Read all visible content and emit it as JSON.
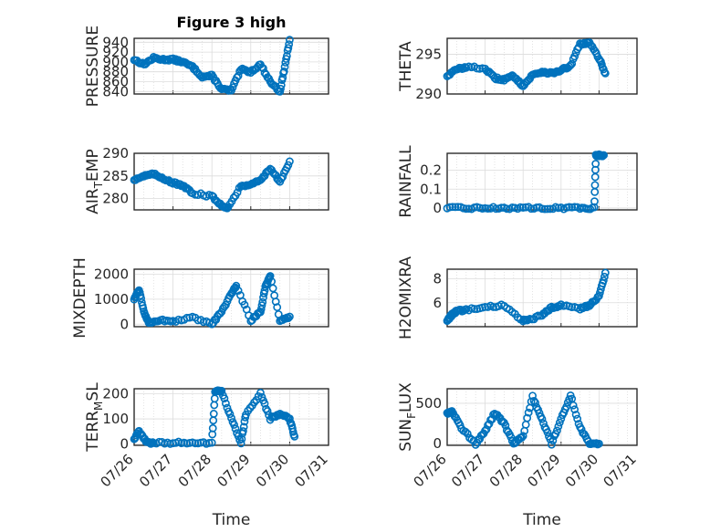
{
  "chart_data": [
    {
      "type": "scatter",
      "title": "Figure 3 high",
      "ylabel": "PRESSURE",
      "ylim": [
        835,
        948
      ],
      "yticks": [
        "840",
        "860",
        "880",
        "900",
        "920",
        "940"
      ],
      "ytick_values": [
        840,
        860,
        880,
        900,
        920,
        940
      ],
      "x": [
        "07/26 00:00",
        "07/26 06:00",
        "07/26 12:00",
        "07/26 18:00",
        "07/27 00:00",
        "07/27 06:00",
        "07/27 12:00",
        "07/27 18:00",
        "07/28 00:00",
        "07/28 06:00",
        "07/28 12:00",
        "07/28 18:00",
        "07/29 00:00",
        "07/29 06:00",
        "07/29 12:00",
        "07/29 18:00",
        "07/29 21:00",
        "07/30 00:00"
      ],
      "y": [
        905,
        895,
        908,
        905,
        905,
        900,
        890,
        870,
        872,
        845,
        842,
        885,
        880,
        895,
        860,
        840,
        890,
        945
      ]
    },
    {
      "type": "scatter",
      "title": "",
      "ylabel": "THETA",
      "ylim": [
        290,
        297
      ],
      "yticks": [
        "290",
        "295"
      ],
      "ytick_values": [
        290,
        295
      ],
      "x": [
        "07/26 00:00",
        "07/26 06:00",
        "07/26 12:00",
        "07/27 00:00",
        "07/27 06:00",
        "07/27 12:00",
        "07/27 18:00",
        "07/28 00:00",
        "07/28 06:00",
        "07/28 12:00",
        "07/28 18:00",
        "07/29 00:00",
        "07/29 06:00",
        "07/29 12:00",
        "07/29 18:00",
        "07/30 00:00",
        "07/30 04:00"
      ],
      "y": [
        292.3,
        293.1,
        293.4,
        293.2,
        292.0,
        291.8,
        292.3,
        291.0,
        292.4,
        292.8,
        292.6,
        293.0,
        293.5,
        296.3,
        296.4,
        294.5,
        292.6
      ]
    },
    {
      "type": "scatter",
      "title": "",
      "ylabel": "AIR_TEMP",
      "ylabel_main": "AIR",
      "ylabel_sub": "T",
      "ylabel_rest": "EMP",
      "ylim": [
        277.5,
        290
      ],
      "yticks": [
        "280",
        "285",
        "290"
      ],
      "ytick_values": [
        280,
        285,
        290
      ],
      "x": [
        "07/26 00:00",
        "07/26 06:00",
        "07/26 12:00",
        "07/26 18:00",
        "07/27 00:00",
        "07/27 06:00",
        "07/27 12:00",
        "07/28 00:00",
        "07/28 06:00",
        "07/28 10:00",
        "07/28 18:00",
        "07/29 00:00",
        "07/29 06:00",
        "07/29 12:00",
        "07/29 18:00",
        "07/30 00:00"
      ],
      "y": [
        284.2,
        285.0,
        285.4,
        284.5,
        283.5,
        282.8,
        281.2,
        280.5,
        278.5,
        278.0,
        282.8,
        283.2,
        284.0,
        286.8,
        283.5,
        288.2
      ]
    },
    {
      "type": "scatter",
      "title": "",
      "ylabel": "RAINFALL",
      "ylim": [
        -0.01,
        0.29
      ],
      "yticks": [
        "0",
        "0.1",
        "0.2"
      ],
      "ytick_values": [
        0,
        0.1,
        0.2
      ],
      "x": [
        "07/26 00:00",
        "07/26 12:00",
        "07/27 00:00",
        "07/27 12:00",
        "07/28 00:00",
        "07/28 12:00",
        "07/29 00:00",
        "07/29 12:00",
        "07/29 21:00",
        "07/29 22:00",
        "07/30 00:00",
        "07/30 03:00"
      ],
      "y": [
        0,
        0,
        0,
        0,
        0,
        0,
        0,
        0,
        0,
        0.28,
        0.28,
        0.28
      ]
    },
    {
      "type": "scatter",
      "title": "",
      "ylabel": "MIXDEPTH",
      "ylim": [
        -100,
        2200
      ],
      "yticks": [
        "0",
        "1000",
        "2000"
      ],
      "ytick_values": [
        0,
        1000,
        2000
      ],
      "x": [
        "07/26 00:00",
        "07/26 03:00",
        "07/26 06:00",
        "07/26 09:00",
        "07/26 15:00",
        "07/27 00:00",
        "07/27 12:00",
        "07/28 00:00",
        "07/28 06:00",
        "07/28 12:00",
        "07/28 15:00",
        "07/29 00:00",
        "07/29 06:00",
        "07/29 09:00",
        "07/29 12:00",
        "07/29 18:00",
        "07/30 00:00"
      ],
      "y": [
        1000,
        1400,
        500,
        80,
        150,
        120,
        250,
        0,
        500,
        1200,
        1550,
        150,
        500,
        1500,
        1950,
        150,
        300
      ]
    },
    {
      "type": "scatter",
      "title": "",
      "ylabel": "H2OMIXRA",
      "ylim": [
        4,
        8.8
      ],
      "yticks": [
        "6",
        "8"
      ],
      "ytick_values": [
        6,
        8
      ],
      "x": [
        "07/26 00:00",
        "07/26 03:00",
        "07/26 06:00",
        "07/26 12:00",
        "07/27 00:00",
        "07/27 12:00",
        "07/28 00:00",
        "07/28 03:00",
        "07/28 12:00",
        "07/28 18:00",
        "07/29 00:00",
        "07/29 12:00",
        "07/29 18:00",
        "07/30 00:00",
        "07/30 04:00"
      ],
      "y": [
        4.5,
        5.0,
        5.3,
        5.4,
        5.6,
        5.8,
        4.5,
        4.5,
        5.0,
        5.6,
        5.8,
        5.5,
        5.8,
        6.5,
        8.5
      ]
    },
    {
      "type": "scatter",
      "title": "",
      "ylabel": "TERR_MSL",
      "ylabel_main": "TERR",
      "ylabel_sub": "M",
      "ylabel_rest": "SL",
      "ylim": [
        -5,
        220
      ],
      "yticks": [
        "0",
        "100",
        "200"
      ],
      "ytick_values": [
        0,
        100,
        200
      ],
      "x": [
        "07/26 00:00",
        "07/26 03:00",
        "07/26 08:00",
        "07/26 12:00",
        "07/27 00:00",
        "07/27 12:00",
        "07/28 00:00",
        "07/28 02:00",
        "07/28 06:00",
        "07/28 12:00",
        "07/28 18:00",
        "07/28 21:00",
        "07/29 06:00",
        "07/29 12:00",
        "07/29 18:00",
        "07/30 00:00",
        "07/30 03:00"
      ],
      "y": [
        20,
        50,
        5,
        5,
        5,
        5,
        5,
        210,
        210,
        100,
        5,
        120,
        200,
        100,
        120,
        100,
        30
      ]
    },
    {
      "type": "scatter",
      "title": "",
      "ylabel": "SUN_FLUX",
      "ylabel_main": "SUN",
      "ylabel_sub": "F",
      "ylabel_rest": "LUX",
      "ylim": [
        -20,
        680
      ],
      "yticks": [
        "0",
        "500"
      ],
      "ytick_values": [
        0,
        500
      ],
      "x": [
        "07/26 00:00",
        "07/26 03:00",
        "07/26 09:00",
        "07/26 18:00",
        "07/27 00:00",
        "07/27 06:00",
        "07/27 12:00",
        "07/27 18:00",
        "07/28 00:00",
        "07/28 06:00",
        "07/28 12:00",
        "07/28 18:00",
        "07/29 00:00",
        "07/29 06:00",
        "07/29 12:00",
        "07/29 18:00",
        "07/30 00:00"
      ],
      "y": [
        380,
        400,
        200,
        0,
        150,
        380,
        250,
        0,
        100,
        580,
        300,
        0,
        300,
        600,
        200,
        0,
        0
      ]
    }
  ],
  "xaxis": {
    "xlim": [
      "07/26",
      "07/31"
    ],
    "xticks": [
      "07/26",
      "07/27",
      "07/28",
      "07/29",
      "07/30",
      "07/31"
    ],
    "xlabel": "Time"
  },
  "style": {
    "marker_color": "#0072bd",
    "marker": "circle",
    "grid": true
  }
}
